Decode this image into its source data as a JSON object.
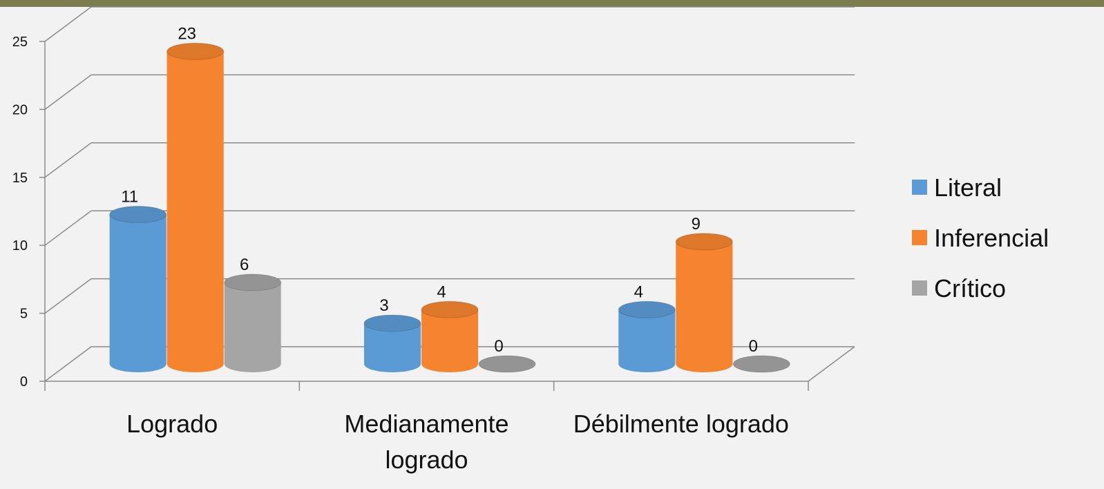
{
  "chart_data": {
    "type": "bar3d",
    "categories": [
      "Logrado",
      "Medianamente logrado",
      "Débilmente logrado"
    ],
    "series": [
      {
        "name": "Literal",
        "color": "#5b9bd5",
        "values": [
          11,
          3,
          4
        ]
      },
      {
        "name": "Inferencial",
        "color": "#f5842f",
        "values": [
          23,
          4,
          9
        ]
      },
      {
        "name": "Crítico",
        "color": "#a5a5a5",
        "values": [
          6,
          0,
          0
        ]
      }
    ],
    "ylim": [
      0,
      25
    ],
    "yticks": [
      0,
      5,
      10,
      15,
      20,
      25
    ],
    "grid": true,
    "legend": "right"
  }
}
